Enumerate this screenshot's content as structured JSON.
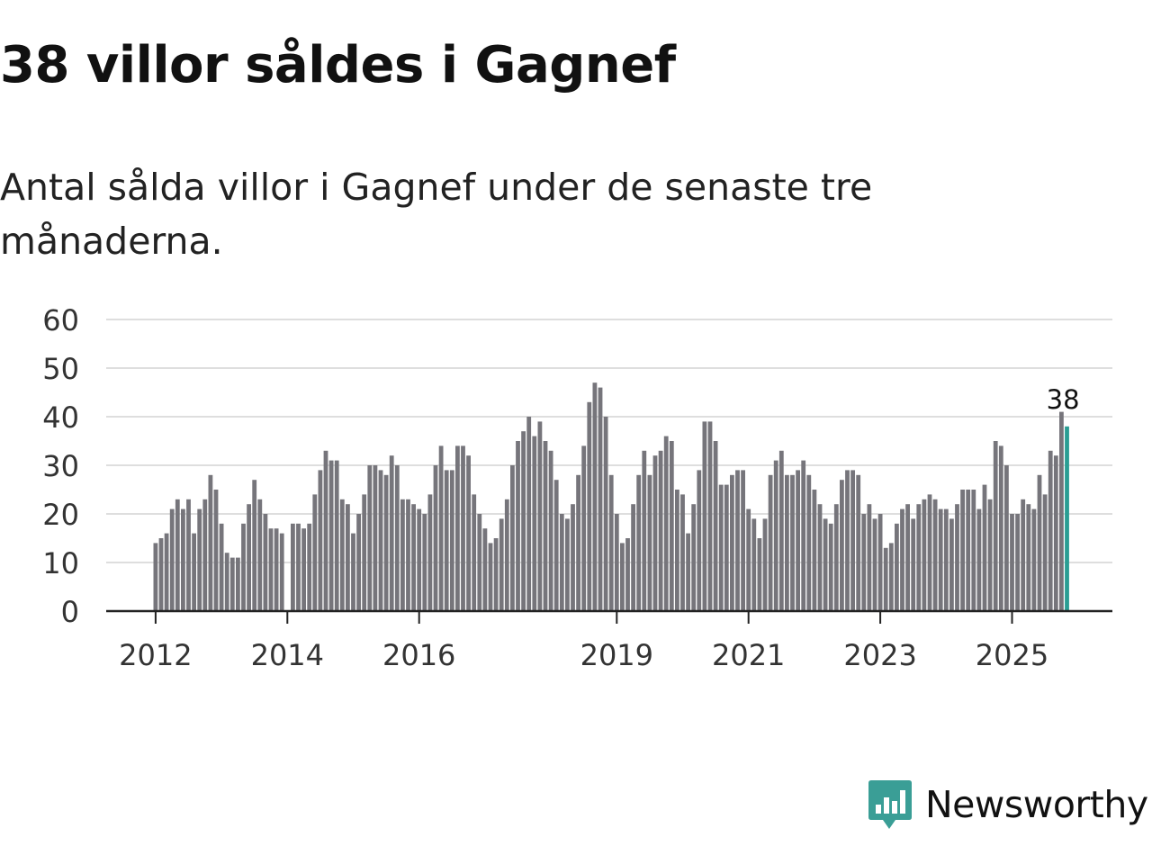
{
  "title": "38 villor såldes i Gagnef",
  "subtitle": "Antal sålda villor i Gagnef under de senaste tre månaderna.",
  "brand": {
    "name": "Newsworthy",
    "color": "#3a9e96",
    "logo_icon": "bar-chart-speech-bubble-icon"
  },
  "colors": {
    "bar": "#76757b",
    "highlight": "#2a9d93",
    "grid": "#dedede",
    "axis": "#222222"
  },
  "chart_data": {
    "type": "bar",
    "title": "38 villor såldes i Gagnef",
    "subtitle": "Antal sålda villor i Gagnef under de senaste tre månaderna.",
    "xlabel": "",
    "ylabel": "",
    "ylim": [
      0,
      60
    ],
    "yticks": [
      0,
      10,
      20,
      30,
      40,
      50,
      60
    ],
    "x_tick_labels": [
      "2012",
      "2014",
      "2016",
      "2019",
      "2021",
      "2023",
      "2025"
    ],
    "x_tick_month_index": [
      0,
      24,
      48,
      84,
      108,
      132,
      156
    ],
    "frequency": "monthly, rolling three-month total",
    "start": "2012-01",
    "grid": true,
    "highlight_label": "38",
    "values": [
      14,
      15,
      16,
      21,
      23,
      21,
      23,
      16,
      21,
      23,
      28,
      25,
      18,
      12,
      11,
      11,
      18,
      22,
      27,
      23,
      20,
      17,
      17,
      16,
      null,
      18,
      18,
      17,
      18,
      24,
      29,
      33,
      31,
      31,
      23,
      22,
      16,
      20,
      24,
      30,
      30,
      29,
      28,
      32,
      30,
      23,
      23,
      22,
      21,
      20,
      24,
      30,
      34,
      29,
      29,
      34,
      34,
      32,
      24,
      20,
      17,
      14,
      15,
      19,
      23,
      30,
      35,
      37,
      40,
      36,
      39,
      35,
      33,
      27,
      20,
      19,
      22,
      28,
      34,
      43,
      47,
      46,
      40,
      28,
      20,
      14,
      15,
      22,
      28,
      33,
      28,
      32,
      33,
      36,
      35,
      25,
      24,
      16,
      22,
      29,
      39,
      39,
      35,
      26,
      26,
      28,
      29,
      29,
      21,
      19,
      15,
      19,
      28,
      31,
      33,
      28,
      28,
      29,
      31,
      28,
      25,
      22,
      19,
      18,
      22,
      27,
      29,
      29,
      28,
      20,
      22,
      19,
      20,
      13,
      14,
      18,
      21,
      22,
      19,
      22,
      23,
      24,
      23,
      21,
      21,
      19,
      22,
      25,
      25,
      25,
      21,
      26,
      23,
      35,
      34,
      30,
      20,
      20,
      23,
      22,
      21,
      28,
      24,
      33,
      32,
      41,
      38
    ]
  }
}
